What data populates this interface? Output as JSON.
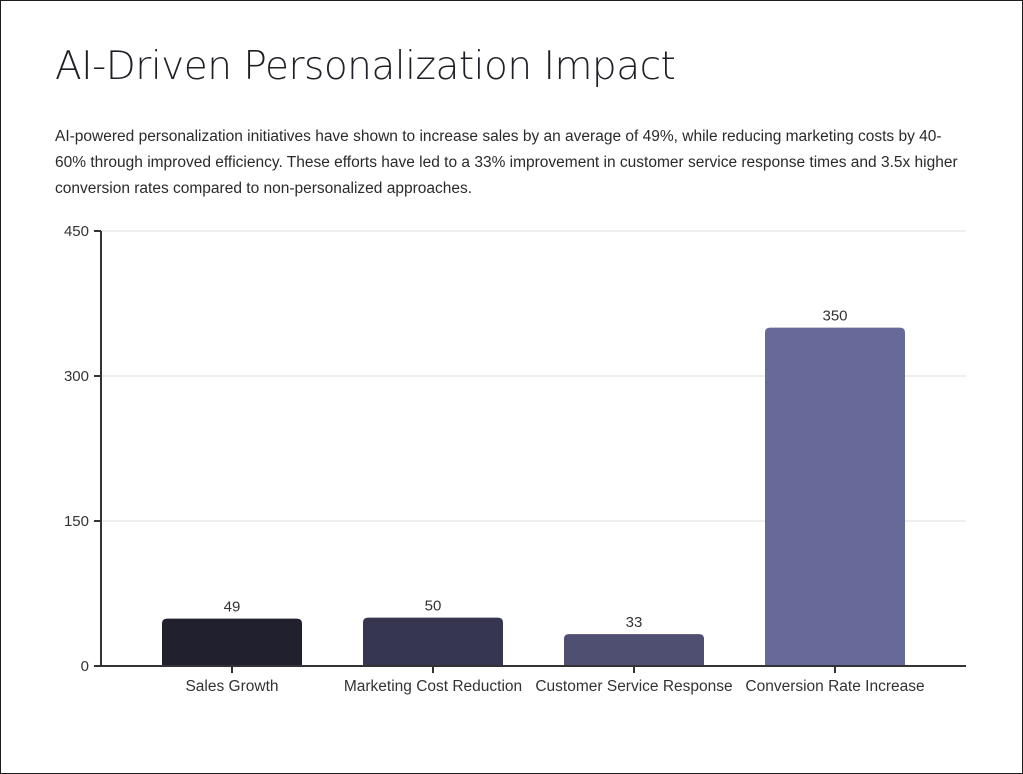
{
  "title": "AI-Driven Personalization Impact",
  "description": "AI-powered personalization initiatives have shown to increase sales by an average of 49%, while reducing marketing costs by 40-60% through improved efficiency. These efforts have led to a 33% improvement in customer service response times and 3.5x higher conversion rates compared to non-personalized approaches.",
  "chart_data": {
    "type": "bar",
    "title": "",
    "xlabel": "",
    "ylabel": "",
    "categories": [
      "Sales Growth",
      "Marketing Cost Reduction",
      "Customer Service Response",
      "Conversion Rate Increase"
    ],
    "values": [
      49,
      50,
      33,
      350
    ],
    "data_labels": [
      "49",
      "50",
      "33",
      "350"
    ],
    "ylim": [
      0,
      450
    ],
    "yticks": [
      0,
      150,
      300,
      450
    ],
    "grid": true,
    "legend": "none",
    "colors": [
      "#20202e",
      "#363650",
      "#4f4f72",
      "#676a98"
    ],
    "axis_color": "#333333",
    "grid_color": "#dcdcdc"
  }
}
